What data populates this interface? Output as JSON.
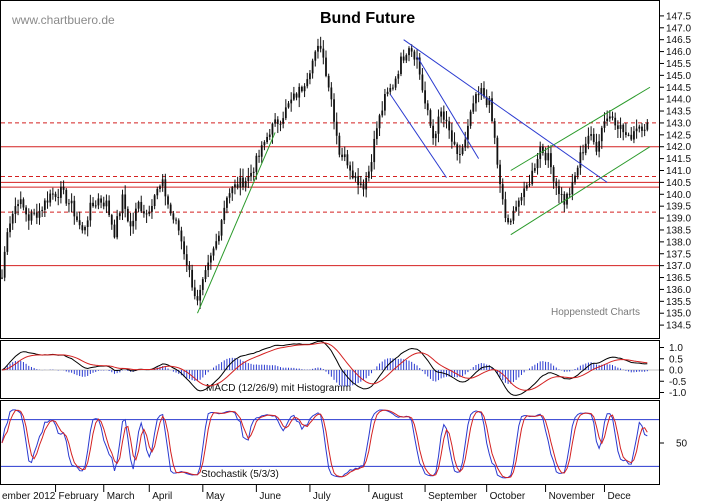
{
  "watermark": "www.chartbuero.de",
  "chart_data": {
    "type": "candlestick",
    "title": "Bund Future",
    "credit": "Hoppenstedt Charts",
    "months": [
      "ember 2012",
      "February",
      "March",
      "April",
      "May",
      "June",
      "July",
      "August",
      "September",
      "October",
      "November",
      "Dece"
    ],
    "price": {
      "ylim": [
        134.0,
        148.0
      ],
      "ticks": [
        134.5,
        135.0,
        135.5,
        136.0,
        136.5,
        137.0,
        137.5,
        138.0,
        138.5,
        139.0,
        139.5,
        140.0,
        140.5,
        141.0,
        141.5,
        142.0,
        142.5,
        143.0,
        143.5,
        144.0,
        144.5,
        145.0,
        145.5,
        146.0,
        146.5,
        147.0,
        147.5
      ],
      "anchors": [
        [
          0,
          136.5
        ],
        [
          2,
          138.6
        ],
        [
          6,
          139.8
        ],
        [
          10,
          139.0
        ],
        [
          14,
          139.3
        ],
        [
          18,
          140.0
        ],
        [
          22,
          140.1
        ],
        [
          26,
          139.5
        ],
        [
          30,
          138.4
        ],
        [
          33,
          139.4
        ],
        [
          36,
          139.8
        ],
        [
          39,
          139.6
        ],
        [
          42,
          138.4
        ],
        [
          45,
          139.8
        ],
        [
          48,
          138.6
        ],
        [
          51,
          139.6
        ],
        [
          54,
          139.2
        ],
        [
          57,
          140.0
        ],
        [
          60,
          140.4
        ],
        [
          63,
          139.2
        ],
        [
          66,
          138.5
        ],
        [
          70,
          136.7
        ],
        [
          73,
          135.4
        ],
        [
          76,
          136.6
        ],
        [
          80,
          138.0
        ],
        [
          84,
          140.0
        ],
        [
          88,
          140.4
        ],
        [
          92,
          140.7
        ],
        [
          96,
          141.6
        ],
        [
          100,
          142.7
        ],
        [
          104,
          143.2
        ],
        [
          108,
          143.9
        ],
        [
          112,
          144.5
        ],
        [
          116,
          145.6
        ],
        [
          119,
          146.3
        ],
        [
          121,
          145.2
        ],
        [
          123,
          144.0
        ],
        [
          126,
          141.8
        ],
        [
          129,
          141.4
        ],
        [
          132,
          140.7
        ],
        [
          135,
          140.4
        ],
        [
          137,
          141.0
        ],
        [
          140,
          142.8
        ],
        [
          143,
          144.0
        ],
        [
          146,
          144.6
        ],
        [
          149,
          145.6
        ],
        [
          152,
          146.3
        ],
        [
          155,
          145.7
        ],
        [
          158,
          143.8
        ],
        [
          161,
          142.4
        ],
        [
          164,
          143.4
        ],
        [
          167,
          142.6
        ],
        [
          170,
          141.5
        ],
        [
          173,
          142.2
        ],
        [
          176,
          143.8
        ],
        [
          179,
          144.3
        ],
        [
          182,
          143.8
        ],
        [
          184,
          142.3
        ],
        [
          186,
          140.3
        ],
        [
          188,
          139.0
        ],
        [
          190,
          138.7
        ],
        [
          192,
          139.7
        ],
        [
          195,
          140.0
        ],
        [
          198,
          140.9
        ],
        [
          201,
          142.0
        ],
        [
          204,
          141.5
        ],
        [
          207,
          140.4
        ],
        [
          210,
          139.7
        ],
        [
          213,
          140.3
        ],
        [
          216,
          141.6
        ],
        [
          219,
          142.5
        ],
        [
          222,
          142.0
        ],
        [
          225,
          143.2
        ],
        [
          228,
          143.3
        ],
        [
          231,
          142.8
        ],
        [
          234,
          142.3
        ],
        [
          237,
          142.9
        ]
      ],
      "hlines_solid": [
        140.3,
        140.5,
        137.0,
        142.0
      ],
      "hlines_dashed": [
        143.0,
        140.75,
        139.25
      ],
      "trendlines": [
        {
          "color": "#2a9a2a",
          "p1": [
            73,
            135.0
          ],
          "p2": [
            102,
            142.6
          ]
        },
        {
          "color": "#2a9a2a",
          "p1": [
            190,
            141.0
          ],
          "p2": [
            242,
            144.5
          ]
        },
        {
          "color": "#2a9a2a",
          "p1": [
            190,
            138.3
          ],
          "p2": [
            242,
            142.0
          ]
        },
        {
          "color": "#2a3ad0",
          "p1": [
            150,
            146.5
          ],
          "p2": [
            226,
            140.5
          ]
        },
        {
          "color": "#2a3ad0",
          "p1": [
            155,
            145.8
          ],
          "p2": [
            178,
            141.5
          ]
        },
        {
          "color": "#2a3ad0",
          "p1": [
            145,
            144.2
          ],
          "p2": [
            166,
            140.7
          ]
        }
      ]
    },
    "macd": {
      "label": "MACD (12/26/9) mit Histogramm",
      "ylim": [
        -1.2,
        1.2
      ],
      "ticks": [
        -1.0,
        -0.5,
        0.0,
        0.5,
        1.0
      ]
    },
    "stochastic": {
      "label": "Stochastik (5/3/3)",
      "ylim": [
        0,
        100
      ],
      "ticks": [
        50
      ],
      "overbought": 80,
      "oversold": 20
    }
  }
}
